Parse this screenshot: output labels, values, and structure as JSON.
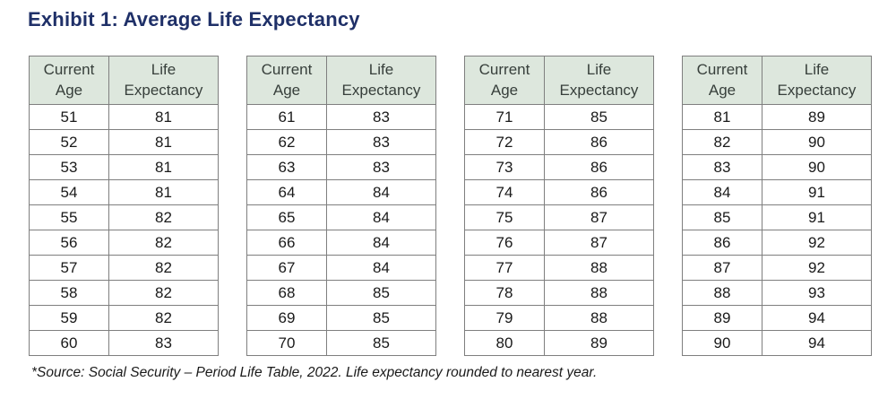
{
  "page": {
    "title": "Exhibit 1: Average Life Expectancy",
    "footnote": "*Source: Social Security – Period Life Table, 2022. Life expectancy rounded to nearest year."
  },
  "colors": {
    "title_navy": "#1f3068",
    "table_header_bg": "#dde7dd",
    "table_border": "#7f7f7f",
    "body_text": "#1a1a1a"
  },
  "tables": [
    {
      "headers": [
        "Current Age",
        "Life Expectancy"
      ],
      "rows": [
        [
          51,
          81
        ],
        [
          52,
          81
        ],
        [
          53,
          81
        ],
        [
          54,
          81
        ],
        [
          55,
          82
        ],
        [
          56,
          82
        ],
        [
          57,
          82
        ],
        [
          58,
          82
        ],
        [
          59,
          82
        ],
        [
          60,
          83
        ]
      ]
    },
    {
      "headers": [
        "Current Age",
        "Life Expectancy"
      ],
      "rows": [
        [
          61,
          83
        ],
        [
          62,
          83
        ],
        [
          63,
          83
        ],
        [
          64,
          84
        ],
        [
          65,
          84
        ],
        [
          66,
          84
        ],
        [
          67,
          84
        ],
        [
          68,
          85
        ],
        [
          69,
          85
        ],
        [
          70,
          85
        ]
      ]
    },
    {
      "headers": [
        "Current Age",
        "Life Expectancy"
      ],
      "rows": [
        [
          71,
          85
        ],
        [
          72,
          86
        ],
        [
          73,
          86
        ],
        [
          74,
          86
        ],
        [
          75,
          87
        ],
        [
          76,
          87
        ],
        [
          77,
          88
        ],
        [
          78,
          88
        ],
        [
          79,
          88
        ],
        [
          80,
          89
        ]
      ]
    },
    {
      "headers": [
        "Current Age",
        "Life Expectancy"
      ],
      "rows": [
        [
          81,
          89
        ],
        [
          82,
          90
        ],
        [
          83,
          90
        ],
        [
          84,
          91
        ],
        [
          85,
          91
        ],
        [
          86,
          92
        ],
        [
          87,
          92
        ],
        [
          88,
          93
        ],
        [
          89,
          94
        ],
        [
          90,
          94
        ]
      ]
    }
  ]
}
